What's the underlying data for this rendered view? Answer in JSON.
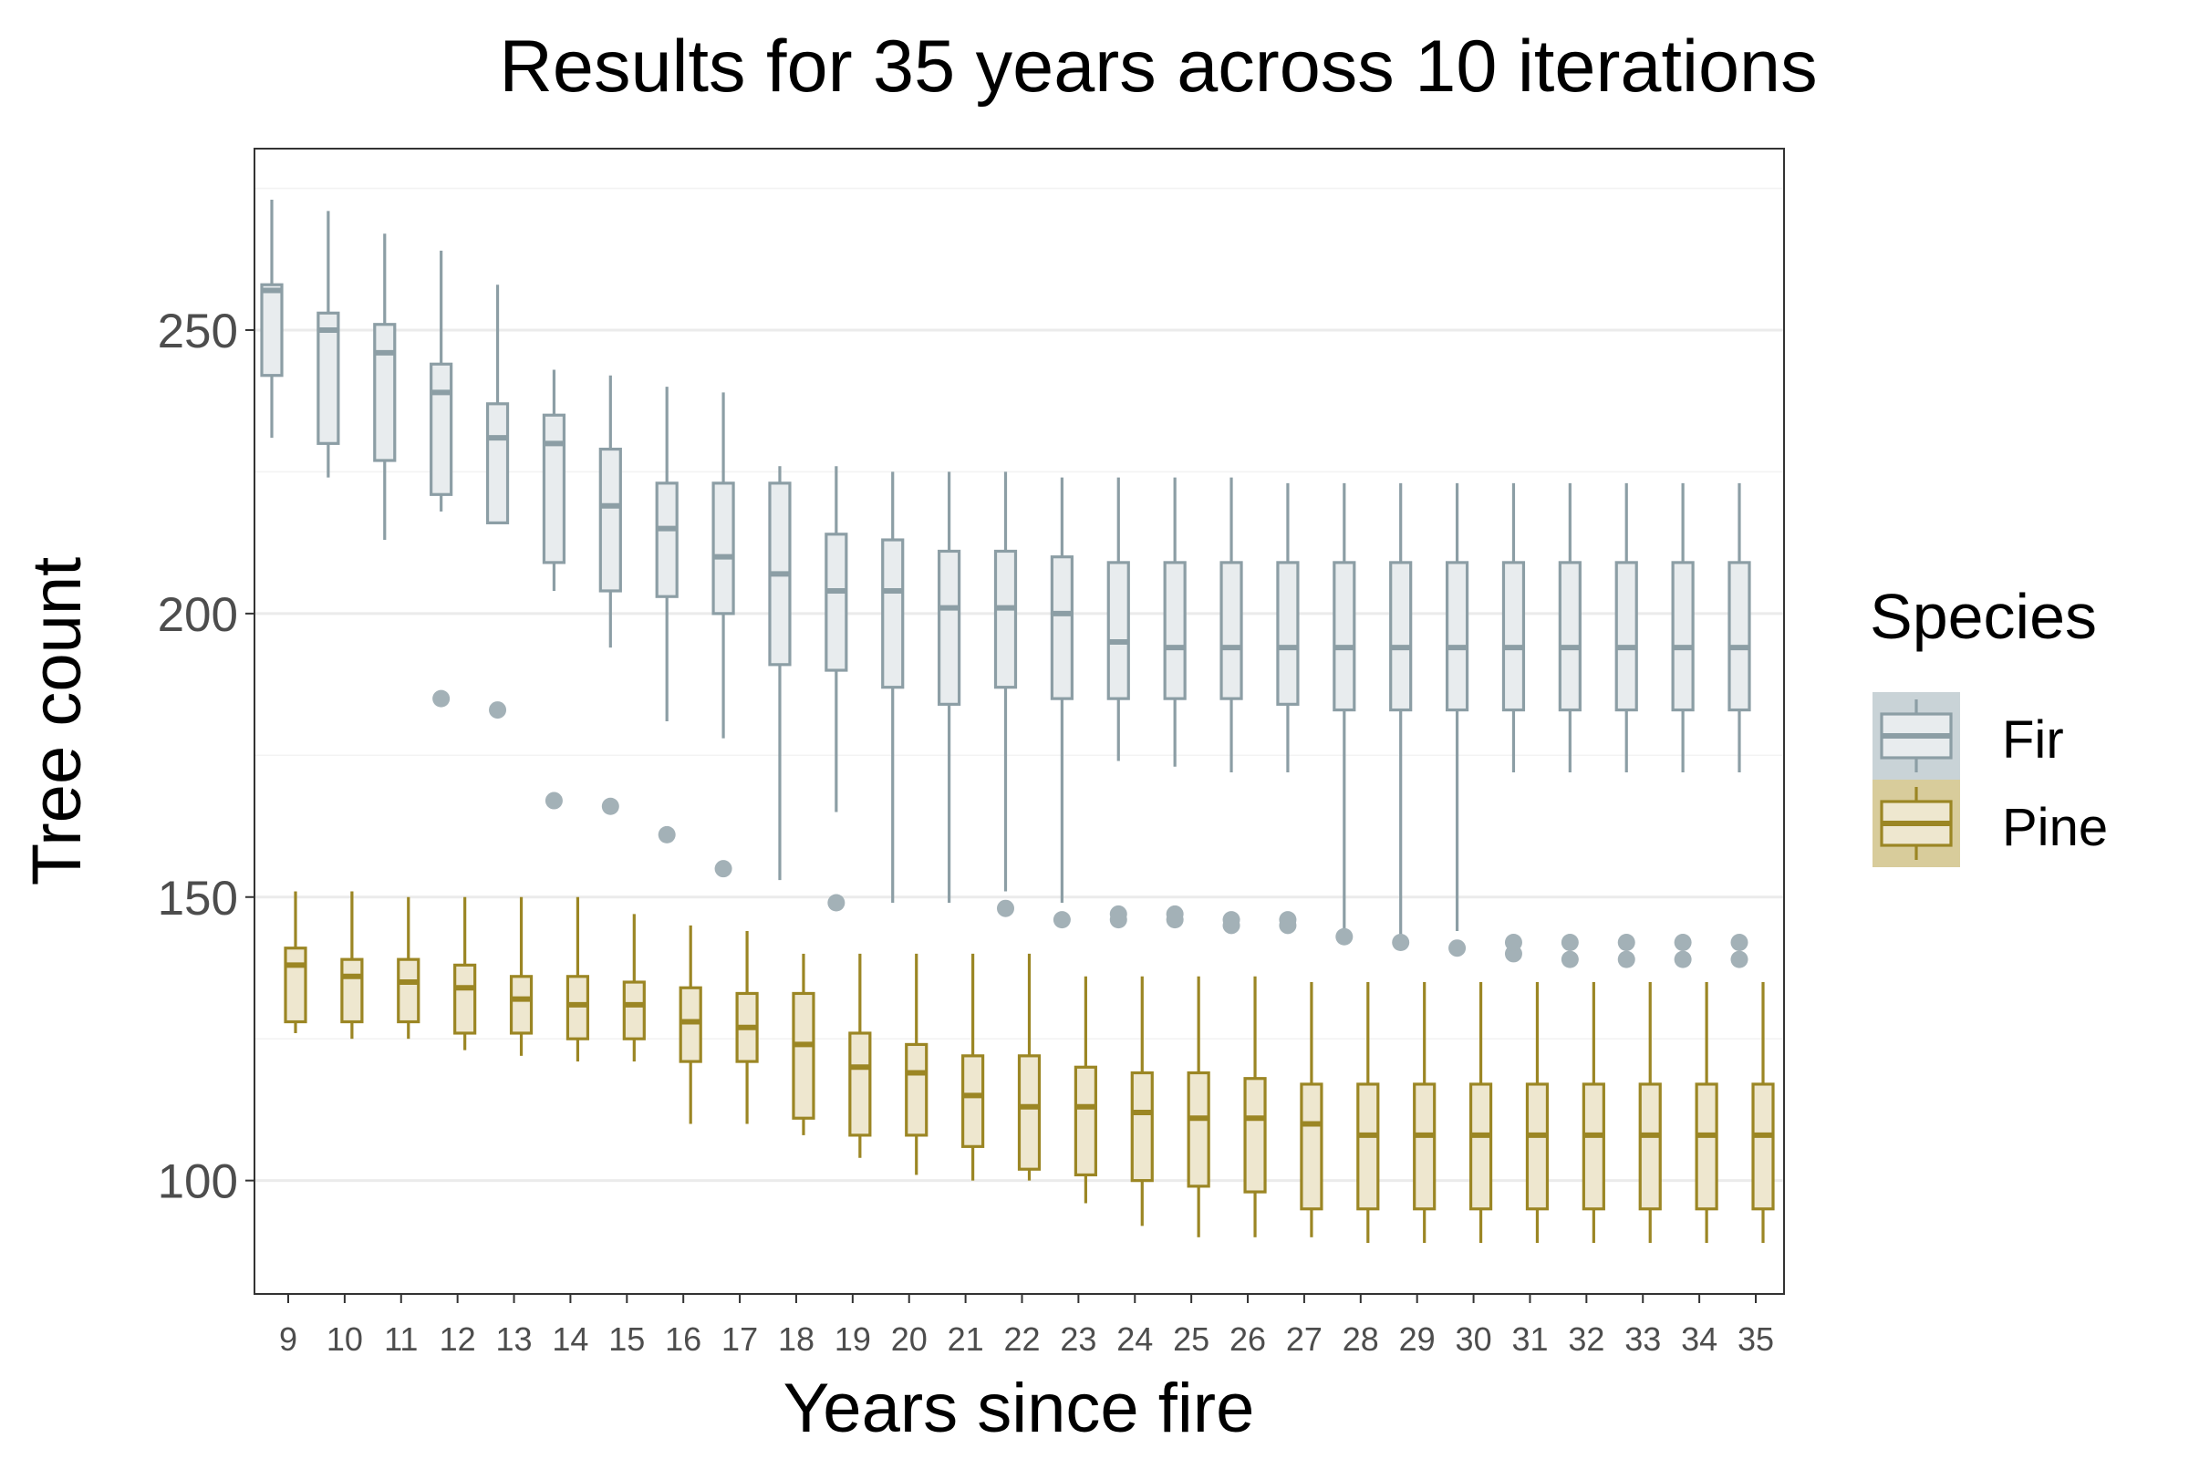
{
  "colors": {
    "fir_stroke": "#8c9ea5",
    "fir_fill": "#e8ecee",
    "fir_key_bg": "#c9d3d7",
    "fir_outlier": "#a3b1b7",
    "pine_stroke": "#9b8624",
    "pine_fill": "#eee7cf",
    "pine_key_bg": "#d8cc9b",
    "grid_major": "#ebebeb",
    "grid_minor": "#f3f3f3",
    "panel_border": "#333333"
  },
  "chart_data": {
    "type": "boxplot",
    "title": "Results for 35 years across 10 iterations",
    "xlabel": "Years since fire",
    "ylabel": "Tree count",
    "ylim": [
      80,
      282
    ],
    "yticks": [
      100,
      150,
      200,
      250
    ],
    "grid": true,
    "legend": {
      "title": "Species",
      "position": "right"
    },
    "categories": [
      "9",
      "10",
      "11",
      "12",
      "13",
      "14",
      "15",
      "16",
      "17",
      "18",
      "19",
      "20",
      "21",
      "22",
      "23",
      "24",
      "25",
      "26",
      "27",
      "28",
      "29",
      "30",
      "31",
      "32",
      "33",
      "34",
      "35"
    ],
    "series": [
      {
        "name": "Fir",
        "boxes": [
          {
            "lower": 231,
            "q1": 242,
            "median": 257,
            "q3": 258,
            "upper": 273,
            "outliers": []
          },
          {
            "lower": 224,
            "q1": 230,
            "median": 250,
            "q3": 253,
            "upper": 271,
            "outliers": []
          },
          {
            "lower": 213,
            "q1": 227,
            "median": 246,
            "q3": 251,
            "upper": 267,
            "outliers": []
          },
          {
            "lower": 218,
            "q1": 221,
            "median": 239,
            "q3": 244,
            "upper": 264,
            "outliers": [
              185
            ]
          },
          {
            "lower": 216,
            "q1": 216,
            "median": 231,
            "q3": 237,
            "upper": 258,
            "outliers": [
              183
            ]
          },
          {
            "lower": 204,
            "q1": 209,
            "median": 230,
            "q3": 235,
            "upper": 243,
            "outliers": [
              167
            ]
          },
          {
            "lower": 194,
            "q1": 204,
            "median": 219,
            "q3": 229,
            "upper": 242,
            "outliers": [
              166
            ]
          },
          {
            "lower": 181,
            "q1": 203,
            "median": 215,
            "q3": 223,
            "upper": 240,
            "outliers": [
              161
            ]
          },
          {
            "lower": 178,
            "q1": 200,
            "median": 210,
            "q3": 223,
            "upper": 239,
            "outliers": [
              155
            ]
          },
          {
            "lower": 153,
            "q1": 191,
            "median": 207,
            "q3": 223,
            "upper": 226,
            "outliers": []
          },
          {
            "lower": 165,
            "q1": 190,
            "median": 204,
            "q3": 214,
            "upper": 226,
            "outliers": [
              149
            ]
          },
          {
            "lower": 149,
            "q1": 187,
            "median": 204,
            "q3": 213,
            "upper": 225,
            "outliers": []
          },
          {
            "lower": 149,
            "q1": 184,
            "median": 201,
            "q3": 211,
            "upper": 225,
            "outliers": []
          },
          {
            "lower": 151,
            "q1": 187,
            "median": 201,
            "q3": 211,
            "upper": 225,
            "outliers": [
              148
            ]
          },
          {
            "lower": 149,
            "q1": 185,
            "median": 200,
            "q3": 210,
            "upper": 224,
            "outliers": [
              146
            ]
          },
          {
            "lower": 174,
            "q1": 185,
            "median": 195,
            "q3": 209,
            "upper": 224,
            "outliers": [
              146,
              147
            ]
          },
          {
            "lower": 173,
            "q1": 185,
            "median": 194,
            "q3": 209,
            "upper": 224,
            "outliers": [
              146,
              147
            ]
          },
          {
            "lower": 172,
            "q1": 185,
            "median": 194,
            "q3": 209,
            "upper": 224,
            "outliers": [
              145,
              146
            ]
          },
          {
            "lower": 172,
            "q1": 184,
            "median": 194,
            "q3": 209,
            "upper": 223,
            "outliers": [
              145,
              146
            ]
          },
          {
            "lower": 143,
            "q1": 183,
            "median": 194,
            "q3": 209,
            "upper": 223,
            "outliers": [
              143
            ]
          },
          {
            "lower": 142,
            "q1": 183,
            "median": 194,
            "q3": 209,
            "upper": 223,
            "outliers": [
              142
            ]
          },
          {
            "lower": 144,
            "q1": 183,
            "median": 194,
            "q3": 209,
            "upper": 223,
            "outliers": [
              141
            ]
          },
          {
            "lower": 172,
            "q1": 183,
            "median": 194,
            "q3": 209,
            "upper": 223,
            "outliers": [
              140,
              142
            ]
          },
          {
            "lower": 172,
            "q1": 183,
            "median": 194,
            "q3": 209,
            "upper": 223,
            "outliers": [
              139,
              142
            ]
          },
          {
            "lower": 172,
            "q1": 183,
            "median": 194,
            "q3": 209,
            "upper": 223,
            "outliers": [
              139,
              142
            ]
          },
          {
            "lower": 172,
            "q1": 183,
            "median": 194,
            "q3": 209,
            "upper": 223,
            "outliers": [
              139,
              142
            ]
          },
          {
            "lower": 172,
            "q1": 183,
            "median": 194,
            "q3": 209,
            "upper": 223,
            "outliers": [
              139,
              142
            ]
          }
        ]
      },
      {
        "name": "Pine",
        "boxes": [
          {
            "lower": 126,
            "q1": 128,
            "median": 138,
            "q3": 141,
            "upper": 151,
            "outliers": []
          },
          {
            "lower": 125,
            "q1": 128,
            "median": 136,
            "q3": 139,
            "upper": 151,
            "outliers": []
          },
          {
            "lower": 125,
            "q1": 128,
            "median": 135,
            "q3": 139,
            "upper": 150,
            "outliers": []
          },
          {
            "lower": 123,
            "q1": 126,
            "median": 134,
            "q3": 138,
            "upper": 150,
            "outliers": []
          },
          {
            "lower": 122,
            "q1": 126,
            "median": 132,
            "q3": 136,
            "upper": 150,
            "outliers": []
          },
          {
            "lower": 121,
            "q1": 125,
            "median": 131,
            "q3": 136,
            "upper": 150,
            "outliers": []
          },
          {
            "lower": 121,
            "q1": 125,
            "median": 131,
            "q3": 135,
            "upper": 147,
            "outliers": []
          },
          {
            "lower": 110,
            "q1": 121,
            "median": 128,
            "q3": 134,
            "upper": 145,
            "outliers": []
          },
          {
            "lower": 110,
            "q1": 121,
            "median": 127,
            "q3": 133,
            "upper": 144,
            "outliers": []
          },
          {
            "lower": 108,
            "q1": 111,
            "median": 124,
            "q3": 133,
            "upper": 140,
            "outliers": []
          },
          {
            "lower": 104,
            "q1": 108,
            "median": 120,
            "q3": 126,
            "upper": 140,
            "outliers": []
          },
          {
            "lower": 101,
            "q1": 108,
            "median": 119,
            "q3": 124,
            "upper": 140,
            "outliers": []
          },
          {
            "lower": 100,
            "q1": 106,
            "median": 115,
            "q3": 122,
            "upper": 140,
            "outliers": []
          },
          {
            "lower": 100,
            "q1": 102,
            "median": 113,
            "q3": 122,
            "upper": 140,
            "outliers": []
          },
          {
            "lower": 96,
            "q1": 101,
            "median": 113,
            "q3": 120,
            "upper": 136,
            "outliers": []
          },
          {
            "lower": 92,
            "q1": 100,
            "median": 112,
            "q3": 119,
            "upper": 136,
            "outliers": []
          },
          {
            "lower": 90,
            "q1": 99,
            "median": 111,
            "q3": 119,
            "upper": 136,
            "outliers": []
          },
          {
            "lower": 90,
            "q1": 98,
            "median": 111,
            "q3": 118,
            "upper": 136,
            "outliers": []
          },
          {
            "lower": 90,
            "q1": 95,
            "median": 110,
            "q3": 117,
            "upper": 135,
            "outliers": []
          },
          {
            "lower": 89,
            "q1": 95,
            "median": 108,
            "q3": 117,
            "upper": 135,
            "outliers": []
          },
          {
            "lower": 89,
            "q1": 95,
            "median": 108,
            "q3": 117,
            "upper": 135,
            "outliers": []
          },
          {
            "lower": 89,
            "q1": 95,
            "median": 108,
            "q3": 117,
            "upper": 135,
            "outliers": []
          },
          {
            "lower": 89,
            "q1": 95,
            "median": 108,
            "q3": 117,
            "upper": 135,
            "outliers": []
          },
          {
            "lower": 89,
            "q1": 95,
            "median": 108,
            "q3": 117,
            "upper": 135,
            "outliers": []
          },
          {
            "lower": 89,
            "q1": 95,
            "median": 108,
            "q3": 117,
            "upper": 135,
            "outliers": []
          },
          {
            "lower": 89,
            "q1": 95,
            "median": 108,
            "q3": 117,
            "upper": 135,
            "outliers": []
          },
          {
            "lower": 89,
            "q1": 95,
            "median": 108,
            "q3": 117,
            "upper": 135,
            "outliers": []
          }
        ]
      }
    ]
  }
}
